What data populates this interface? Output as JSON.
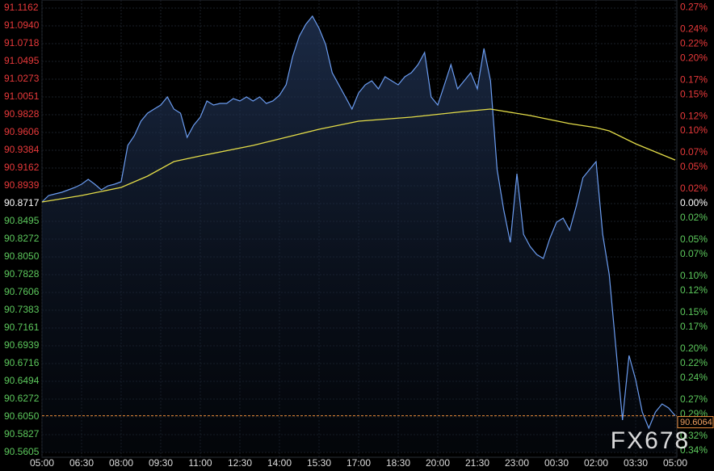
{
  "chart_data": {
    "type": "line",
    "watermark": "FX678",
    "xlim": [
      0,
      24
    ],
    "xticks": [
      {
        "value": 0,
        "label": "05:00"
      },
      {
        "value": 1.5,
        "label": "06:30"
      },
      {
        "value": 3,
        "label": "08:00"
      },
      {
        "value": 4.5,
        "label": "09:30"
      },
      {
        "value": 6,
        "label": "11:00"
      },
      {
        "value": 7.5,
        "label": "12:30"
      },
      {
        "value": 9,
        "label": "14:00"
      },
      {
        "value": 10.5,
        "label": "15:30"
      },
      {
        "value": 12,
        "label": "17:00"
      },
      {
        "value": 13.5,
        "label": "18:30"
      },
      {
        "value": 15,
        "label": "20:00"
      },
      {
        "value": 16.5,
        "label": "21:30"
      },
      {
        "value": 18,
        "label": "23:00"
      },
      {
        "value": 19.5,
        "label": "00:30"
      },
      {
        "value": 21,
        "label": "02:00"
      },
      {
        "value": 22.5,
        "label": "03:30"
      },
      {
        "value": 24,
        "label": "05:00"
      }
    ],
    "ylim": [
      90.5605,
      91.1162
    ],
    "yticks": [
      91.1162,
      {
        "value": 91.094,
        "label": "91.0940"
      },
      91.0718,
      91.0495,
      91.0273,
      91.0051,
      90.9828,
      90.9606,
      90.9384,
      90.9162,
      90.8939,
      90.8717,
      90.8495,
      90.8272,
      {
        "value": 90.805,
        "label": "90.8050"
      },
      90.7828,
      90.7606,
      90.7383,
      90.7161,
      90.6939,
      90.6716,
      90.6494,
      90.6272,
      {
        "value": 90.605,
        "label": "90.6050"
      },
      90.5827,
      90.5605
    ],
    "y2lim": [
      -0.3425,
      0.2691
    ],
    "y2ticks": [
      {
        "value": 0.27,
        "label": "0.27%"
      },
      {
        "value": 0.24,
        "label": "0.24%"
      },
      {
        "value": 0.22,
        "label": "0.22%"
      },
      {
        "value": 0.2,
        "label": "0.20%"
      },
      {
        "value": 0.17,
        "label": "0.17%"
      },
      {
        "value": 0.15,
        "label": "0.15%"
      },
      {
        "value": 0.12,
        "label": "0.12%"
      },
      {
        "value": 0.1,
        "label": "0.10%"
      },
      {
        "value": 0.07,
        "label": "0.07%"
      },
      {
        "value": 0.05,
        "label": "0.05%"
      },
      {
        "value": 0.02,
        "label": "0.02%"
      },
      {
        "value": 0,
        "label": "0.00%"
      },
      {
        "value": -0.02,
        "label": "0.02%"
      },
      {
        "value": -0.05,
        "label": "0.05%"
      },
      {
        "value": -0.07,
        "label": "0.07%"
      },
      {
        "value": -0.1,
        "label": "0.10%"
      },
      {
        "value": -0.12,
        "label": "0.12%"
      },
      {
        "value": -0.15,
        "label": "0.15%"
      },
      {
        "value": -0.17,
        "label": "0.17%"
      },
      {
        "value": -0.2,
        "label": "0.20%"
      },
      {
        "value": -0.22,
        "label": "0.22%"
      },
      {
        "value": -0.24,
        "label": "0.24%"
      },
      {
        "value": -0.27,
        "label": "0.27%"
      },
      {
        "value": -0.29,
        "label": "0.29%"
      },
      {
        "value": -0.32,
        "label": "0.32%"
      },
      {
        "value": -0.34,
        "label": "0.34%"
      }
    ],
    "up_color": "#e8393a",
    "down_color": "#5cc85c",
    "grid": true,
    "x": [
      0,
      0.25,
      0.5,
      0.75,
      1,
      1.25,
      1.5,
      1.75,
      2,
      2.25,
      2.5,
      2.75,
      3,
      3.25,
      3.5,
      3.75,
      4,
      4.25,
      4.5,
      4.75,
      5,
      5.25,
      5.5,
      5.75,
      6,
      6.25,
      6.5,
      6.75,
      7,
      7.25,
      7.5,
      7.75,
      8,
      8.25,
      8.5,
      8.75,
      9,
      9.25,
      9.5,
      9.75,
      10,
      10.25,
      10.5,
      10.75,
      11,
      11.25,
      11.5,
      11.75,
      12,
      12.25,
      12.5,
      12.75,
      13,
      13.25,
      13.5,
      13.75,
      14,
      14.25,
      14.5,
      14.75,
      15,
      15.25,
      15.5,
      15.75,
      16,
      16.25,
      16.5,
      16.75,
      17,
      17.25,
      17.5,
      17.75,
      18,
      18.25,
      18.5,
      18.75,
      19,
      19.25,
      19.5,
      19.75,
      20,
      20.25,
      20.5,
      20.75,
      21,
      21.25,
      21.5,
      21.75,
      22,
      22.25,
      22.5,
      22.75,
      23,
      23.25,
      23.5,
      23.75,
      24
    ],
    "series": [
      {
        "color": "#6b9cf0",
        "values": [
          90.8737,
          90.8818,
          90.8838,
          90.8858,
          90.8889,
          90.8919,
          90.8959,
          90.902,
          90.8959,
          90.8889,
          90.8939,
          90.8959,
          90.899,
          90.9444,
          90.9566,
          90.9747,
          90.9848,
          90.9899,
          90.995,
          91.0051,
          90.9899,
          90.9848,
          90.9545,
          90.9697,
          90.9798,
          91.0,
          90.995,
          90.997,
          90.997,
          91.003,
          91.0,
          91.0051,
          91.0,
          91.0051,
          90.997,
          91.0,
          91.0071,
          91.0202,
          91.0556,
          91.0808,
          91.096,
          91.1061,
          91.0909,
          91.0707,
          91.0354,
          91.0202,
          91.0051,
          90.9899,
          91.0101,
          91.0202,
          91.0253,
          91.0152,
          91.0303,
          91.0253,
          91.0202,
          91.0303,
          91.0354,
          91.0455,
          91.0606,
          91.0051,
          90.995,
          91.0202,
          91.0455,
          91.0152,
          91.0253,
          91.0354,
          91.0152,
          91.0657,
          91.0253,
          90.9141,
          90.8636,
          90.8232,
          90.9091,
          90.8333,
          90.8181,
          90.808,
          90.803,
          90.8282,
          90.8484,
          90.8535,
          90.8383,
          90.8687,
          90.904,
          90.9141,
          90.9242,
          90.8333,
          90.7828,
          90.6918,
          90.6009,
          90.6817,
          90.6514,
          90.611,
          90.5908,
          90.611,
          90.6211,
          90.6161,
          90.6064
        ]
      },
      {
        "color": "#e3dc48",
        "x": [
          0,
          1.5,
          3,
          4,
          5,
          6,
          8,
          9.5,
          10.5,
          12,
          14,
          16,
          17,
          18.5,
          20,
          21,
          21.5,
          22.5,
          24
        ],
        "values": [
          90.8737,
          90.8818,
          90.8919,
          90.906,
          90.9242,
          90.9313,
          90.9444,
          90.9566,
          90.9646,
          90.9747,
          90.9798,
          90.9869,
          90.9899,
          90.9818,
          90.9717,
          90.9667,
          90.9626,
          90.9465,
          90.9262
        ]
      }
    ]
  }
}
